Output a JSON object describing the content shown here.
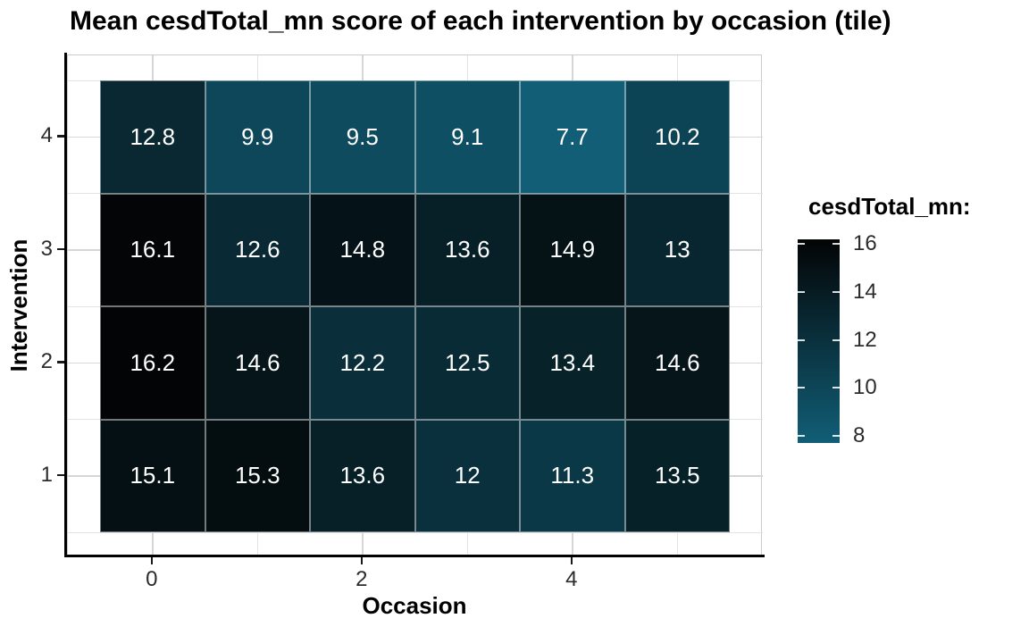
{
  "chart_data": {
    "type": "heatmap",
    "title": "Mean cesdTotal_mn score of each intervention by occasion (tile)",
    "xlabel": "Occasion",
    "ylabel": "Intervention",
    "x": [
      0,
      1,
      2,
      3,
      4,
      5
    ],
    "x_axis_ticks": [
      0,
      2,
      4
    ],
    "y_axis_ticks": [
      4,
      3,
      2,
      1
    ],
    "rows": [
      {
        "intervention": 4,
        "values": [
          12.8,
          9.9,
          9.5,
          9.1,
          7.7,
          10.2
        ]
      },
      {
        "intervention": 3,
        "values": [
          16.1,
          12.6,
          14.8,
          13.6,
          14.9,
          13
        ]
      },
      {
        "intervention": 2,
        "values": [
          16.2,
          14.6,
          12.2,
          12.5,
          13.4,
          14.6
        ]
      },
      {
        "intervention": 1,
        "values": [
          15.1,
          15.3,
          13.6,
          12,
          11.3,
          13.5
        ]
      }
    ],
    "fill": {
      "legend_title": "cesdTotal_mn:",
      "limits": [
        7.7,
        16.2
      ],
      "legend_ticks": [
        16,
        14,
        12,
        10,
        8
      ],
      "low_color": "#115e76",
      "high_color": "#030405",
      "value_text_color": "#ffffff"
    },
    "grid": true,
    "legend_position": "right",
    "xlim": [
      -0.8,
      5.8
    ],
    "ylim": [
      0.3,
      4.7
    ]
  }
}
